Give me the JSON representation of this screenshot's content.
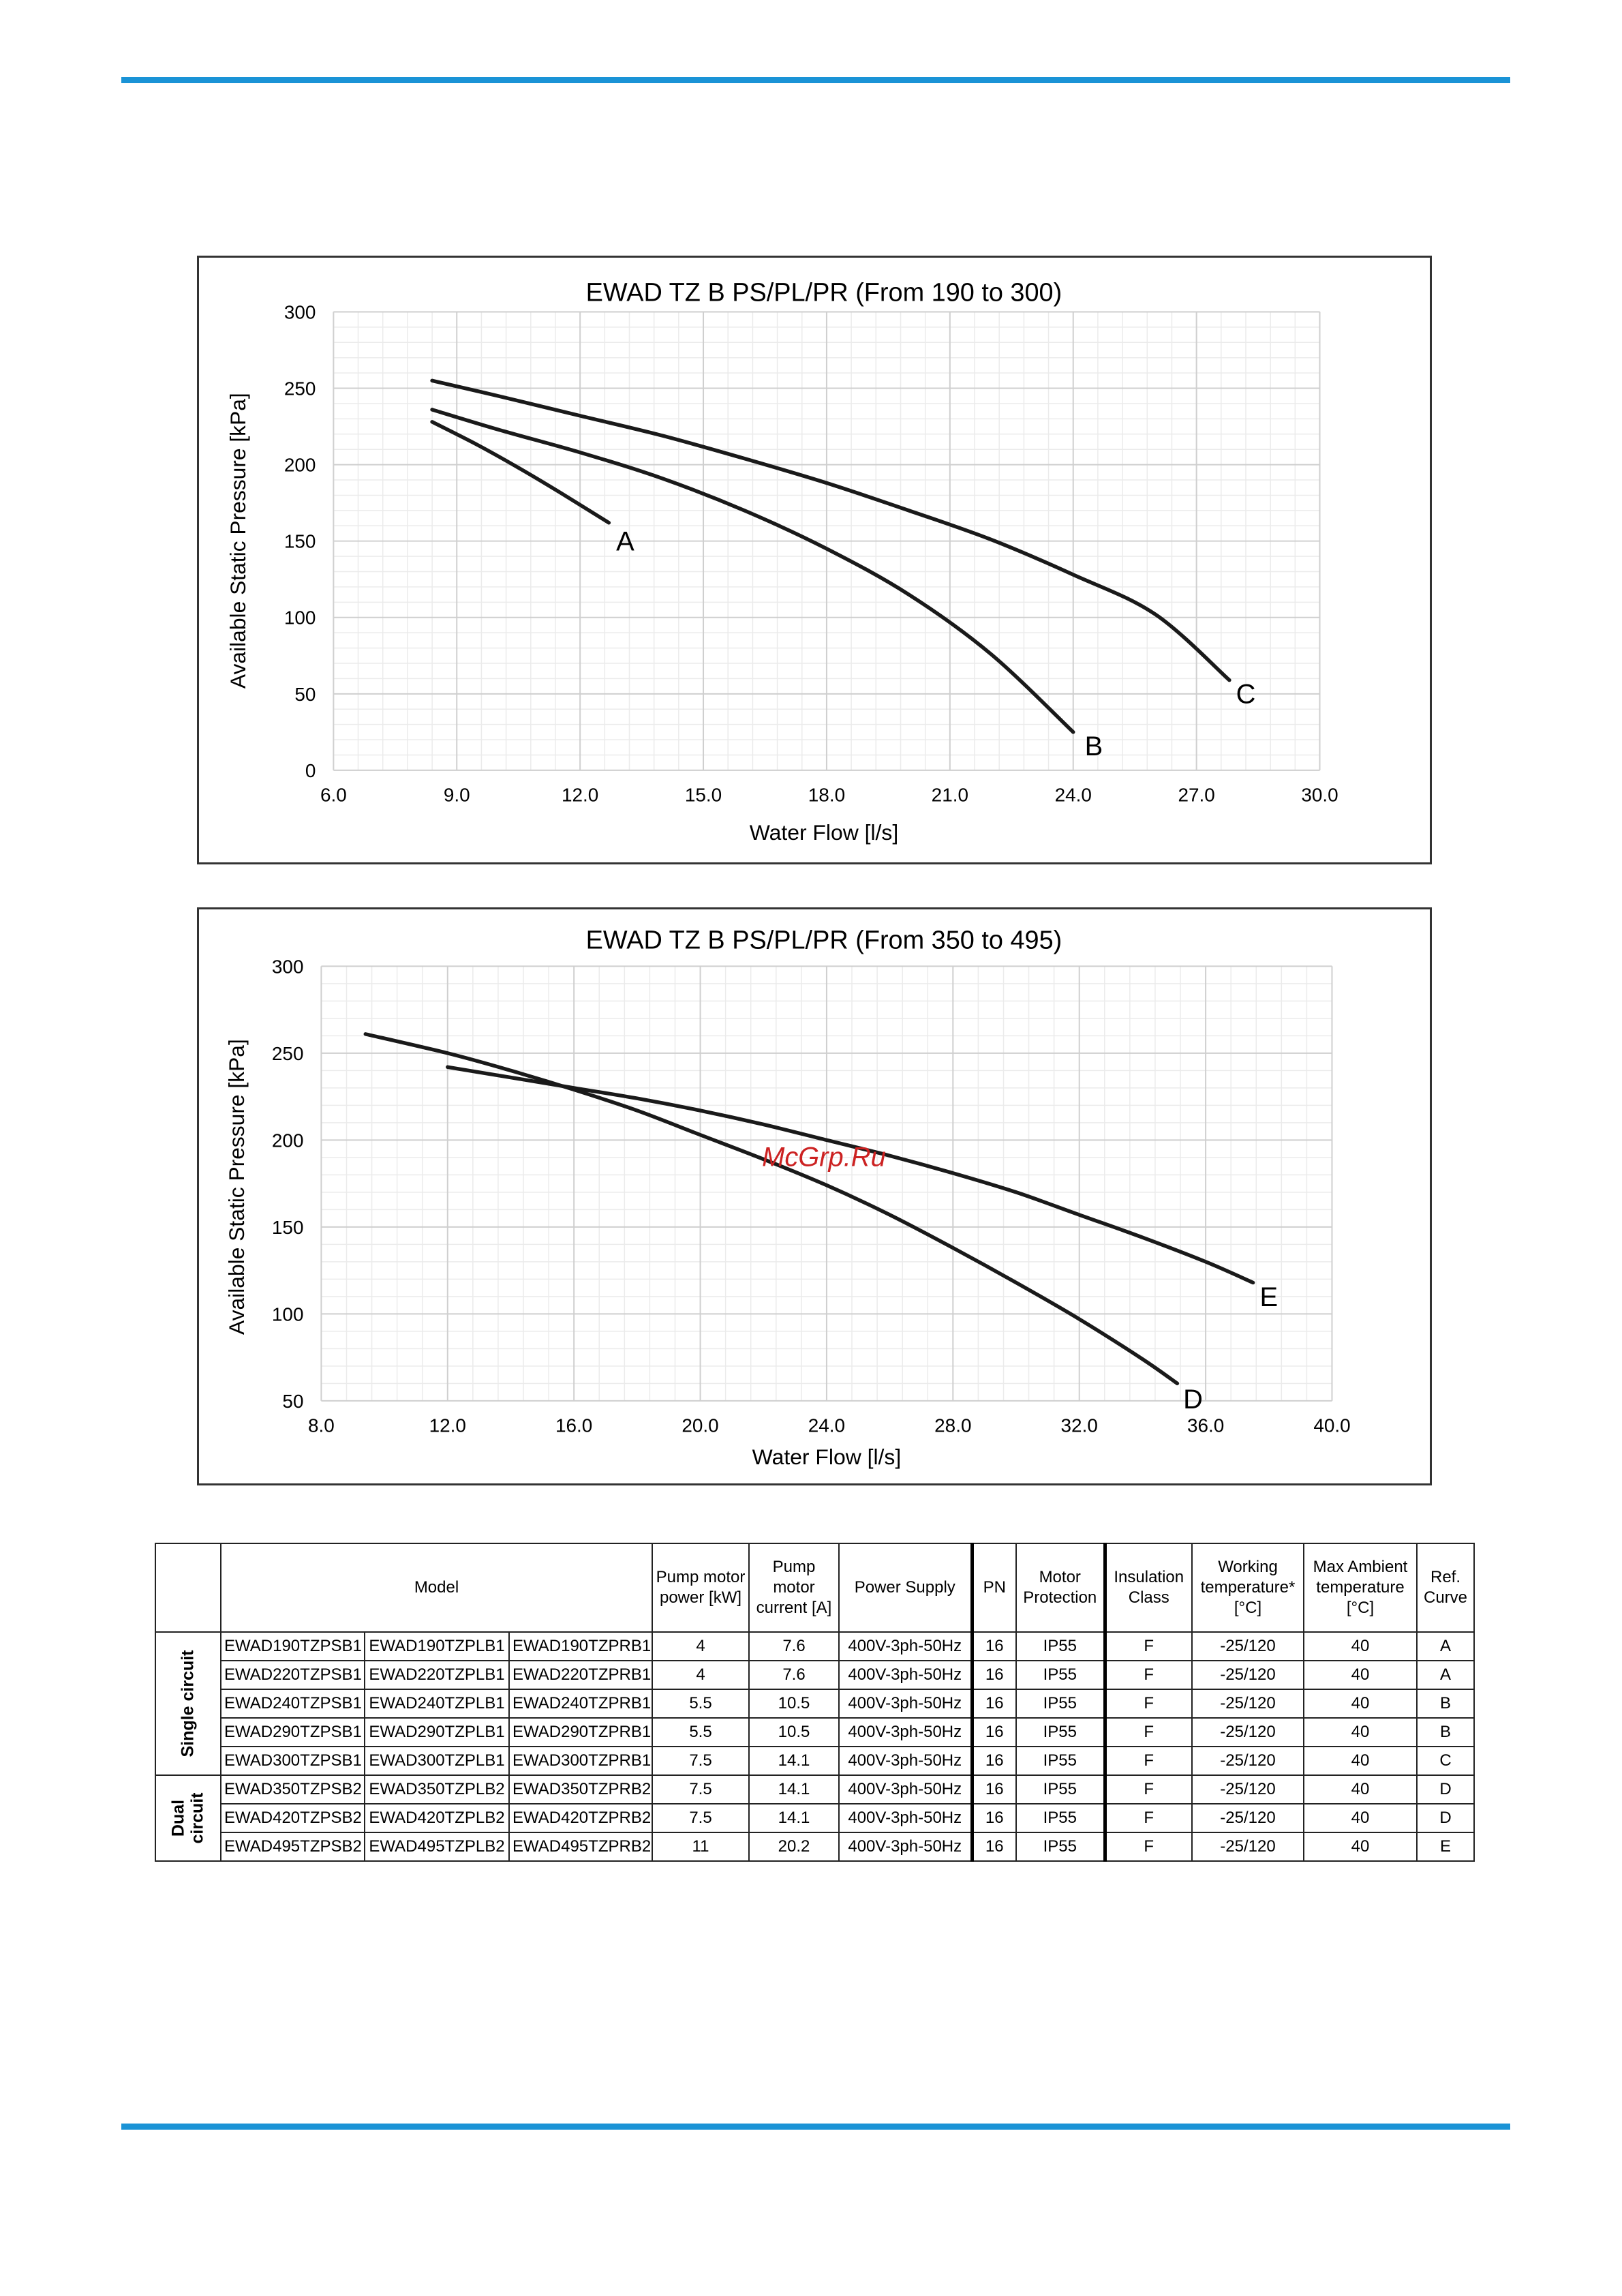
{
  "colors": {
    "accent_rule": "#1a93d6",
    "grid_major": "#cfcfcf",
    "grid_minor": "#ebebeb",
    "curve": "#1a1a1a"
  },
  "chart_data": [
    {
      "type": "line",
      "title": "EWAD TZ B PS/PL/PR  (From 190 to 300)",
      "xlabel": "Water Flow [l/s]",
      "ylabel": "Available Static Pressure  [kPa]",
      "xlim": [
        6.0,
        30.0
      ],
      "ylim": [
        0,
        300
      ],
      "x_ticks": [
        "6.0",
        "9.0",
        "12.0",
        "15.0",
        "18.0",
        "21.0",
        "24.0",
        "27.0",
        "30.0"
      ],
      "y_ticks": [
        "0",
        "50",
        "100",
        "150",
        "200",
        "250",
        "300"
      ],
      "x_tick_values": [
        6,
        9,
        12,
        15,
        18,
        21,
        24,
        27,
        30
      ],
      "y_tick_values": [
        0,
        50,
        100,
        150,
        200,
        250,
        300
      ],
      "grid": true,
      "series": [
        {
          "name": "A",
          "x": [
            8.4,
            9.5,
            10.5,
            11.5,
            12.7
          ],
          "y": [
            228,
            213,
            198,
            182,
            162
          ],
          "label_at": [
            13.1,
            150
          ]
        },
        {
          "name": "B",
          "x": [
            8.4,
            10,
            12,
            14,
            16,
            18,
            20,
            22,
            24
          ],
          "y": [
            236,
            223,
            208,
            191,
            170,
            145,
            115,
            76,
            25
          ],
          "label_at": [
            24.5,
            16
          ]
        },
        {
          "name": "C",
          "x": [
            8.4,
            10,
            12,
            14,
            16,
            18,
            20,
            22,
            24,
            26,
            27.8
          ],
          "y": [
            255,
            245,
            232,
            219,
            204,
            188,
            170,
            151,
            128,
            102,
            59
          ],
          "label_at": [
            28.2,
            50
          ]
        }
      ]
    },
    {
      "type": "line",
      "title": "EWAD TZ B PS/PL/PR  (From 350 to 495)",
      "xlabel": "Water Flow [l/s]",
      "ylabel": "Available Static Pressure  [kPa]",
      "xlim": [
        8.0,
        40.0
      ],
      "ylim": [
        50,
        300
      ],
      "x_ticks": [
        "8.0",
        "12.0",
        "16.0",
        "20.0",
        "24.0",
        "28.0",
        "32.0",
        "36.0",
        "40.0"
      ],
      "y_ticks": [
        "50",
        "100",
        "150",
        "200",
        "250",
        "300"
      ],
      "x_tick_values": [
        8,
        12,
        16,
        20,
        24,
        28,
        32,
        36,
        40
      ],
      "y_tick_values": [
        50,
        100,
        150,
        200,
        250,
        300
      ],
      "grid": true,
      "series": [
        {
          "name": "D",
          "x": [
            9.4,
            12,
            14,
            16,
            18,
            20,
            22,
            24,
            26,
            28,
            30,
            32,
            34,
            35.1
          ],
          "y": [
            261,
            250,
            240,
            229,
            217,
            203,
            189,
            174,
            157,
            138,
            118,
            97,
            74,
            60
          ],
          "label_at": [
            35.6,
            51
          ]
        },
        {
          "name": "E",
          "x": [
            12,
            14,
            16,
            18,
            20,
            22,
            24,
            26,
            28,
            30,
            32,
            34,
            36,
            37.5
          ],
          "y": [
            242,
            236,
            230,
            224,
            217,
            209,
            200,
            191,
            181,
            170,
            157,
            144,
            130,
            118
          ],
          "label_at": [
            38.0,
            110
          ]
        }
      ]
    }
  ],
  "watermark": "McGrp.Ru",
  "table": {
    "headers": {
      "model": "Model",
      "pump_power": "Pump motor power [kW]",
      "pump_current": "Pump motor current [A]",
      "power_supply": "Power Supply",
      "pn": "PN",
      "motor_protection": "Motor Protection",
      "insulation": "Insulation Class",
      "working_temp": "Working temperature* [°C]",
      "max_ambient": "Max Ambient temperature [°C]",
      "ref_curve": "Ref. Curve"
    },
    "groups": [
      {
        "label": "Single circuit",
        "rows": 5
      },
      {
        "label": "Dual circuit",
        "rows": 3
      }
    ],
    "rows": [
      {
        "ps": "EWAD190TZPSB1",
        "pl": "EWAD190TZPLB1",
        "pr": "EWAD190TZPRB1",
        "power": "4",
        "current": "7.6",
        "supply": "400V-3ph-50Hz",
        "pn": "16",
        "protection": "IP55",
        "insulation": "F",
        "temp": "-25/120",
        "ambient": "40",
        "curve": "A"
      },
      {
        "ps": "EWAD220TZPSB1",
        "pl": "EWAD220TZPLB1",
        "pr": "EWAD220TZPRB1",
        "power": "4",
        "current": "7.6",
        "supply": "400V-3ph-50Hz",
        "pn": "16",
        "protection": "IP55",
        "insulation": "F",
        "temp": "-25/120",
        "ambient": "40",
        "curve": "A"
      },
      {
        "ps": "EWAD240TZPSB1",
        "pl": "EWAD240TZPLB1",
        "pr": "EWAD240TZPRB1",
        "power": "5.5",
        "current": "10.5",
        "supply": "400V-3ph-50Hz",
        "pn": "16",
        "protection": "IP55",
        "insulation": "F",
        "temp": "-25/120",
        "ambient": "40",
        "curve": "B"
      },
      {
        "ps": "EWAD290TZPSB1",
        "pl": "EWAD290TZPLB1",
        "pr": "EWAD290TZPRB1",
        "power": "5.5",
        "current": "10.5",
        "supply": "400V-3ph-50Hz",
        "pn": "16",
        "protection": "IP55",
        "insulation": "F",
        "temp": "-25/120",
        "ambient": "40",
        "curve": "B"
      },
      {
        "ps": "EWAD300TZPSB1",
        "pl": "EWAD300TZPLB1",
        "pr": "EWAD300TZPRB1",
        "power": "7.5",
        "current": "14.1",
        "supply": "400V-3ph-50Hz",
        "pn": "16",
        "protection": "IP55",
        "insulation": "F",
        "temp": "-25/120",
        "ambient": "40",
        "curve": "C"
      },
      {
        "ps": "EWAD350TZPSB2",
        "pl": "EWAD350TZPLB2",
        "pr": "EWAD350TZPRB2",
        "power": "7.5",
        "current": "14.1",
        "supply": "400V-3ph-50Hz",
        "pn": "16",
        "protection": "IP55",
        "insulation": "F",
        "temp": "-25/120",
        "ambient": "40",
        "curve": "D"
      },
      {
        "ps": "EWAD420TZPSB2",
        "pl": "EWAD420TZPLB2",
        "pr": "EWAD420TZPRB2",
        "power": "7.5",
        "current": "14.1",
        "supply": "400V-3ph-50Hz",
        "pn": "16",
        "protection": "IP55",
        "insulation": "F",
        "temp": "-25/120",
        "ambient": "40",
        "curve": "D"
      },
      {
        "ps": "EWAD495TZPSB2",
        "pl": "EWAD495TZPLB2",
        "pr": "EWAD495TZPRB2",
        "power": "11",
        "current": "20.2",
        "supply": "400V-3ph-50Hz",
        "pn": "16",
        "protection": "IP55",
        "insulation": "F",
        "temp": "-25/120",
        "ambient": "40",
        "curve": "E"
      }
    ]
  }
}
